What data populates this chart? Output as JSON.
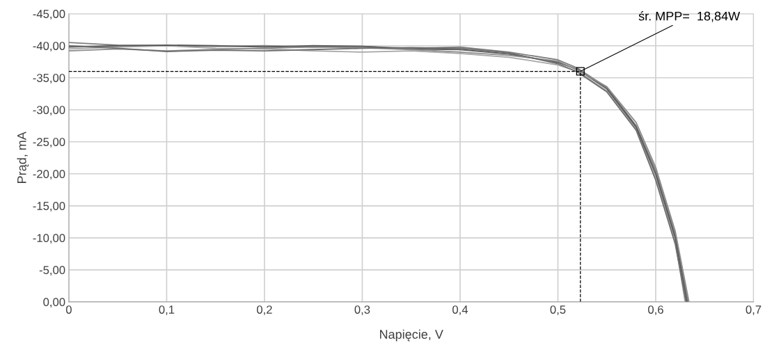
{
  "chart_data": {
    "type": "line",
    "xlabel": "Napięcie, V",
    "ylabel": "Prąd, mA",
    "xlim": [
      0,
      0.7
    ],
    "ylim": [
      0,
      -45
    ],
    "xticks": [
      {
        "value": 0,
        "label": "0"
      },
      {
        "value": 0.1,
        "label": "0,1"
      },
      {
        "value": 0.2,
        "label": "0,2"
      },
      {
        "value": 0.3,
        "label": "0,3"
      },
      {
        "value": 0.4,
        "label": "0,4"
      },
      {
        "value": 0.5,
        "label": "0,5"
      },
      {
        "value": 0.6,
        "label": "0,6"
      },
      {
        "value": 0.7,
        "label": "0,7"
      }
    ],
    "yticks": [
      {
        "value": 0,
        "label": "0,00"
      },
      {
        "value": -5,
        "label": "-5,00"
      },
      {
        "value": -10,
        "label": "-10,00"
      },
      {
        "value": -15,
        "label": "-15,00"
      },
      {
        "value": -20,
        "label": "-20,00"
      },
      {
        "value": -25,
        "label": "-25,00"
      },
      {
        "value": -30,
        "label": "-30,00"
      },
      {
        "value": -35,
        "label": "-35,00"
      },
      {
        "value": -40,
        "label": "-40,00"
      },
      {
        "value": -45,
        "label": "-45,00"
      }
    ],
    "grid": true,
    "legend": false,
    "marker": "none",
    "line_style": "solid",
    "series": [
      {
        "color": "#7f7f7f",
        "x": [
          0,
          0.05,
          0.1,
          0.15,
          0.2,
          0.25,
          0.3,
          0.35,
          0.4,
          0.45,
          0.5,
          0.52,
          0.55,
          0.58,
          0.6,
          0.62,
          0.633
        ],
        "values": [
          -40.5,
          -40.1,
          -40.0,
          -39.9,
          -40.0,
          -39.8,
          -39.9,
          -39.6,
          -39.8,
          -39.0,
          -37.8,
          -36.5,
          -33.5,
          -27.5,
          -20.5,
          -10.5,
          0
        ]
      },
      {
        "color": "#a6a6a6",
        "x": [
          0,
          0.05,
          0.1,
          0.15,
          0.2,
          0.25,
          0.3,
          0.35,
          0.4,
          0.45,
          0.5,
          0.52,
          0.55,
          0.58,
          0.6,
          0.62,
          0.63
        ],
        "values": [
          -39.5,
          -39.8,
          -40.0,
          -39.6,
          -39.5,
          -39.2,
          -39.0,
          -39.2,
          -38.8,
          -38.2,
          -37.0,
          -36.0,
          -33.0,
          -27.0,
          -19.5,
          -9.5,
          0
        ]
      },
      {
        "color": "#595959",
        "x": [
          0,
          0.05,
          0.1,
          0.15,
          0.2,
          0.25,
          0.3,
          0.35,
          0.4,
          0.45,
          0.5,
          0.52,
          0.55,
          0.58,
          0.6,
          0.62,
          0.632
        ],
        "values": [
          -39.8,
          -40.0,
          -40.1,
          -40.0,
          -39.8,
          -40.0,
          -39.9,
          -39.5,
          -39.4,
          -38.7,
          -37.4,
          -36.3,
          -33.3,
          -27.3,
          -20.0,
          -10.0,
          0
        ]
      },
      {
        "color": "#8c8c8c",
        "x": [
          0,
          0.05,
          0.1,
          0.15,
          0.2,
          0.25,
          0.3,
          0.35,
          0.4,
          0.45,
          0.5,
          0.52,
          0.55,
          0.58,
          0.6,
          0.62,
          0.634
        ],
        "values": [
          -39.2,
          -39.5,
          -39.2,
          -39.4,
          -39.6,
          -39.8,
          -39.7,
          -39.4,
          -39.0,
          -38.5,
          -37.6,
          -36.2,
          -33.6,
          -28.0,
          -21.0,
          -11.0,
          0
        ]
      },
      {
        "color": "#6e6e6e",
        "x": [
          0,
          0.05,
          0.1,
          0.15,
          0.2,
          0.25,
          0.3,
          0.35,
          0.4,
          0.45,
          0.5,
          0.52,
          0.55,
          0.58,
          0.6,
          0.62,
          0.631
        ],
        "values": [
          -40.0,
          -39.6,
          -39.1,
          -39.3,
          -39.2,
          -39.4,
          -39.6,
          -39.7,
          -39.6,
          -38.9,
          -37.2,
          -35.9,
          -32.8,
          -26.8,
          -19.0,
          -9.0,
          0
        ]
      },
      {
        "type": "scatter",
        "marker": "square",
        "color": "#000000",
        "x": [
          0.523
        ],
        "values": [
          -36
        ]
      }
    ],
    "ref_lines": [
      {
        "axis": "x",
        "value": 0.523,
        "color": "#000000",
        "line_style": "dashed"
      },
      {
        "axis": "y",
        "value": -36,
        "color": "#000000",
        "line_style": "dashed"
      }
    ],
    "annotations": [
      {
        "text": "śr. MPP=  18,84W",
        "x": 0.523,
        "y": -36
      }
    ]
  }
}
